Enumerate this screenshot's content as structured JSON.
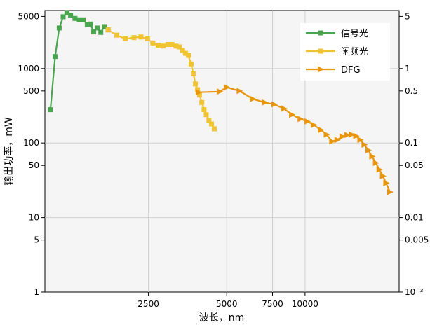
{
  "chart_data": {
    "type": "line",
    "xlabel": "波长，nm",
    "ylabel": "输出功率，mW",
    "x_scale": "log",
    "y_scale": "log",
    "xlim": [
      1000,
      23000
    ],
    "ylim": [
      1,
      6000
    ],
    "x_ticks": [
      {
        "value": 2500,
        "label": "2500"
      },
      {
        "value": 5000,
        "label": "5000"
      },
      {
        "value": 7500,
        "label": "7500"
      },
      {
        "value": 10000,
        "label": "10000"
      }
    ],
    "y_ticks_left": [
      {
        "value": 1,
        "label": "1"
      },
      {
        "value": 5,
        "label": "5"
      },
      {
        "value": 10,
        "label": "10"
      },
      {
        "value": 50,
        "label": "50"
      },
      {
        "value": 100,
        "label": "100"
      },
      {
        "value": 500,
        "label": "500"
      },
      {
        "value": 1000,
        "label": "1000"
      },
      {
        "value": 5000,
        "label": "5000"
      }
    ],
    "y_ticks_right": [
      {
        "value": 1,
        "label": "10⁻³"
      },
      {
        "value": 5,
        "label": "0.005"
      },
      {
        "value": 10,
        "label": "0.01"
      },
      {
        "value": 50,
        "label": "0.05"
      },
      {
        "value": 100,
        "label": "0.1"
      },
      {
        "value": 500,
        "label": "0.5"
      },
      {
        "value": 1000,
        "label": "1"
      },
      {
        "value": 5000,
        "label": "5"
      }
    ],
    "gridlines_x": [
      2500,
      5000,
      7500,
      10000
    ],
    "gridlines_y": [
      10,
      100,
      1000
    ],
    "legend_position": "top-right",
    "series": [
      {
        "name": "信号光",
        "color": "#4aa54f",
        "marker": "square",
        "points": [
          [
            1050,
            280
          ],
          [
            1095,
            1450
          ],
          [
            1135,
            3500
          ],
          [
            1175,
            4950
          ],
          [
            1215,
            5600
          ],
          [
            1255,
            5200
          ],
          [
            1305,
            4700
          ],
          [
            1355,
            4500
          ],
          [
            1405,
            4500
          ],
          [
            1455,
            3900
          ],
          [
            1495,
            3950
          ],
          [
            1540,
            3100
          ],
          [
            1590,
            3500
          ],
          [
            1640,
            3050
          ],
          [
            1690,
            3650
          ],
          [
            1750,
            3300
          ]
        ]
      },
      {
        "name": "闲频光",
        "color": "#f0c332",
        "marker": "square",
        "points": [
          [
            1750,
            3300
          ],
          [
            1890,
            2800
          ],
          [
            2040,
            2500
          ],
          [
            2200,
            2600
          ],
          [
            2340,
            2650
          ],
          [
            2480,
            2500
          ],
          [
            2600,
            2200
          ],
          [
            2730,
            2050
          ],
          [
            2850,
            2000
          ],
          [
            2970,
            2100
          ],
          [
            3080,
            2100
          ],
          [
            3190,
            2000
          ],
          [
            3290,
            1950
          ],
          [
            3380,
            1750
          ],
          [
            3470,
            1600
          ],
          [
            3560,
            1500
          ],
          [
            3650,
            1150
          ],
          [
            3720,
            850
          ],
          [
            3790,
            620
          ],
          [
            3860,
            520
          ],
          [
            3930,
            440
          ],
          [
            4010,
            350
          ],
          [
            4090,
            280
          ],
          [
            4170,
            240
          ],
          [
            4270,
            200
          ],
          [
            4370,
            180
          ],
          [
            4480,
            155
          ]
        ]
      },
      {
        "name": "DFG",
        "color": "#e8960e",
        "marker": "triangle-right",
        "points": [
          [
            3900,
            480
          ],
          [
            4700,
            490
          ],
          [
            5000,
            560
          ],
          [
            5600,
            500
          ],
          [
            6300,
            390
          ],
          [
            7000,
            350
          ],
          [
            7600,
            330
          ],
          [
            8300,
            290
          ],
          [
            8900,
            240
          ],
          [
            9600,
            210
          ],
          [
            10200,
            195
          ],
          [
            10800,
            175
          ],
          [
            11500,
            150
          ],
          [
            12100,
            130
          ],
          [
            12700,
            105
          ],
          [
            13300,
            110
          ],
          [
            13900,
            122
          ],
          [
            14500,
            128
          ],
          [
            15100,
            130
          ],
          [
            15700,
            124
          ],
          [
            16300,
            110
          ],
          [
            16900,
            95
          ],
          [
            17500,
            80
          ],
          [
            18100,
            66
          ],
          [
            18700,
            54
          ],
          [
            19300,
            44
          ],
          [
            19900,
            36
          ],
          [
            20500,
            29
          ],
          [
            21200,
            22
          ]
        ]
      }
    ]
  }
}
